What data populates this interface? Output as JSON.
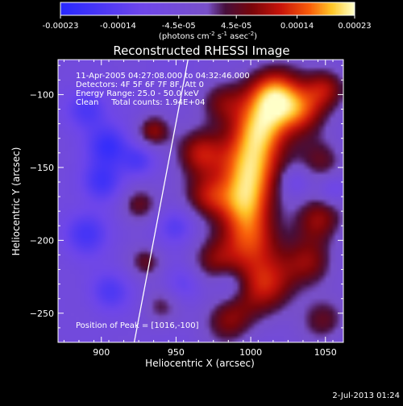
{
  "colorbar": {
    "ticks": [
      "-0.00023",
      "-0.00014",
      "-4.5e-05",
      "4.5e-05",
      "0.00014",
      "0.00023"
    ],
    "unit_label_parts": [
      "(photons cm",
      "-2",
      " s",
      "-1",
      " asec",
      "-2",
      ")"
    ]
  },
  "plot": {
    "title": "Reconstructed RHESSI Image",
    "info_lines": [
      "11-Apr-2005 04:27:08.000 to 04:32:46.000",
      "Detectors: 4F 5F 6F 7F 8F, Att 0",
      "Energy Range: 25.0 - 50.0 keV",
      "Clean     Total counts: 1.94E+04"
    ],
    "peak_label": "Position of Peak = [1016,-100]",
    "timestamp": "2-Jul-2013 01:24"
  },
  "chart_data": {
    "type": "heatmap",
    "title": "Reconstructed RHESSI Image",
    "xlabel": "Heliocentric X (arcsec)",
    "ylabel": "Heliocentric Y (arcsec)",
    "xlim": [
      871,
      1062
    ],
    "ylim": [
      -270,
      -76
    ],
    "x_ticks": [
      900,
      950,
      1000,
      1050
    ],
    "y_ticks": [
      -100,
      -150,
      -200,
      -250
    ],
    "color_range": [
      -0.00023,
      0.00023
    ],
    "peak": [
      1016,
      -100
    ],
    "limb_line": [
      [
        922,
        -270
      ],
      [
        958,
        -76
      ]
    ],
    "blobs": [
      {
        "x": 1016,
        "y": -100,
        "v": 1.0,
        "s": 14
      },
      {
        "x": 1005,
        "y": -125,
        "v": 0.85,
        "s": 14
      },
      {
        "x": 1000,
        "y": -150,
        "v": 0.9,
        "s": 15
      },
      {
        "x": 995,
        "y": -175,
        "v": 0.75,
        "s": 14
      },
      {
        "x": 1000,
        "y": -200,
        "v": 0.7,
        "s": 14
      },
      {
        "x": 1010,
        "y": -230,
        "v": 0.72,
        "s": 15
      },
      {
        "x": 1035,
        "y": -112,
        "v": 0.6,
        "s": 12
      },
      {
        "x": 1050,
        "y": -95,
        "v": 0.55,
        "s": 10
      },
      {
        "x": 1048,
        "y": -145,
        "v": 0.45,
        "s": 11
      },
      {
        "x": 1045,
        "y": -185,
        "v": 0.6,
        "s": 12
      },
      {
        "x": 1040,
        "y": -215,
        "v": 0.5,
        "s": 12
      },
      {
        "x": 1048,
        "y": -255,
        "v": 0.45,
        "s": 11
      },
      {
        "x": 980,
        "y": -105,
        "v": 0.5,
        "s": 11
      },
      {
        "x": 965,
        "y": -140,
        "v": 0.65,
        "s": 12
      },
      {
        "x": 970,
        "y": -170,
        "v": 0.55,
        "s": 11
      },
      {
        "x": 975,
        "y": -215,
        "v": 0.45,
        "s": 12
      },
      {
        "x": 985,
        "y": -255,
        "v": 0.55,
        "s": 12
      },
      {
        "x": 935,
        "y": -125,
        "v": 0.6,
        "s": 8
      },
      {
        "x": 925,
        "y": -175,
        "v": 0.5,
        "s": 9
      },
      {
        "x": 930,
        "y": -215,
        "v": 0.45,
        "s": 8
      },
      {
        "x": 940,
        "y": -245,
        "v": 0.35,
        "s": 9
      },
      {
        "x": 890,
        "y": -110,
        "v": -0.5,
        "s": 10
      },
      {
        "x": 905,
        "y": -135,
        "v": -0.6,
        "s": 10
      },
      {
        "x": 900,
        "y": -160,
        "v": -0.55,
        "s": 10
      },
      {
        "x": 890,
        "y": -195,
        "v": -0.5,
        "s": 11
      },
      {
        "x": 905,
        "y": -235,
        "v": -0.45,
        "s": 10
      },
      {
        "x": 925,
        "y": -145,
        "v": -0.45,
        "s": 8
      },
      {
        "x": 950,
        "y": -190,
        "v": -0.4,
        "s": 9
      },
      {
        "x": 955,
        "y": -230,
        "v": -0.35,
        "s": 9
      },
      {
        "x": 1055,
        "y": -165,
        "v": -0.35,
        "s": 7
      },
      {
        "x": 1030,
        "y": -160,
        "v": -0.3,
        "s": 7
      },
      {
        "x": 985,
        "y": -230,
        "v": -0.3,
        "s": 8
      }
    ]
  }
}
